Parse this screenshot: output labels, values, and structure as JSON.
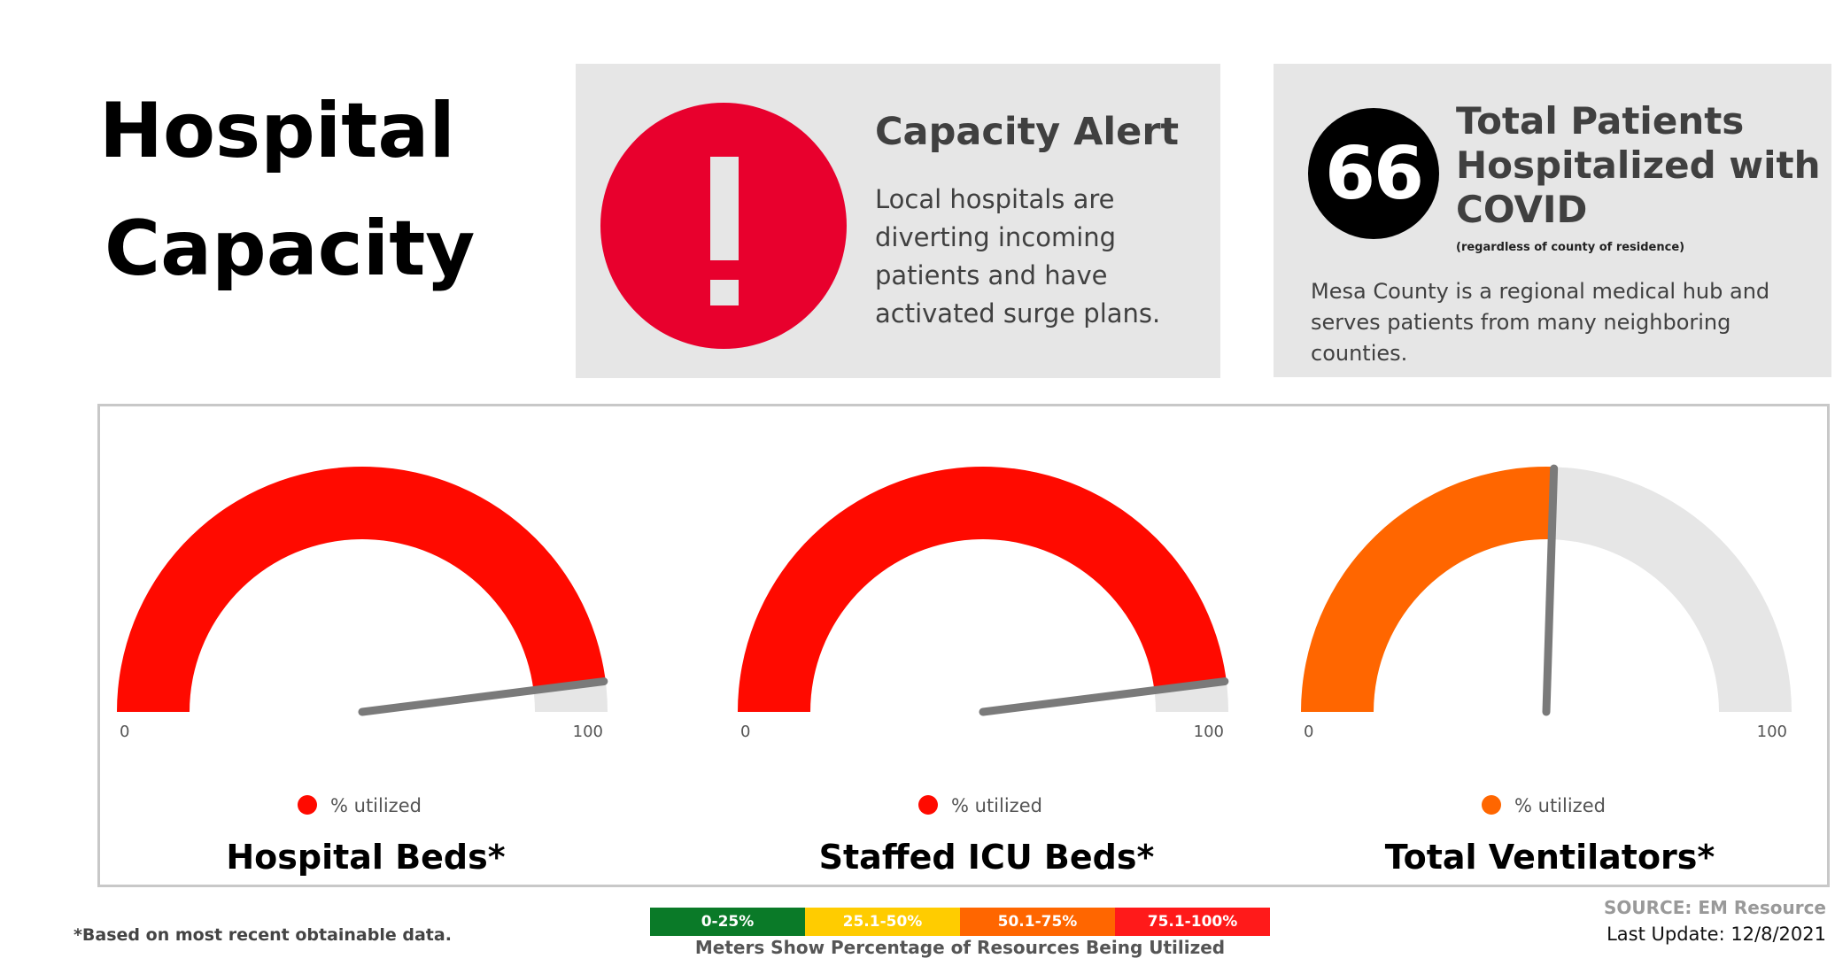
{
  "page_title": {
    "line1": "Hospital",
    "line2": "Capacity"
  },
  "alert_card": {
    "icon": "exclamation-icon",
    "icon_color": "#e8002d",
    "title": "Capacity Alert",
    "body": "Local hospitals are diverting incoming patients and have activated surge plans."
  },
  "patients_card": {
    "count": "66",
    "title": "Total Patients Hospitalized with COVID",
    "note": "(regardless of county of residence)",
    "body": "Mesa County is a regional medical hub and serves patients from many neighboring counties."
  },
  "chart_data": [
    {
      "type": "gauge",
      "title": "Hospital Beds*",
      "min": 0,
      "max": 100,
      "value": 96,
      "legend": "% utilized",
      "color": "#ff0a00",
      "min_label": "0",
      "max_label": "100"
    },
    {
      "type": "gauge",
      "title": "Staffed ICU Beds*",
      "min": 0,
      "max": 100,
      "value": 96,
      "legend": "% utilized",
      "color": "#ff0a00",
      "min_label": "0",
      "max_label": "100"
    },
    {
      "type": "gauge",
      "title": "Total Ventilators*",
      "min": 0,
      "max": 100,
      "value": 51,
      "legend": "% utilized",
      "color": "#ff6600",
      "min_label": "0",
      "max_label": "100"
    }
  ],
  "gauge_track_color": "#e6e6e6",
  "needle_color": "#7a7a7a",
  "footnote": "*Based on most recent obtainable data.",
  "scale": {
    "segments": [
      {
        "label": "0-25%",
        "color": "#0a7a28"
      },
      {
        "label": "25.1-50%",
        "color": "#ffcc00"
      },
      {
        "label": "50.1-75%",
        "color": "#ff6600"
      },
      {
        "label": "75.1-100%",
        "color": "#ff1a1a"
      }
    ],
    "caption": "Meters Show Percentage of Resources Being Utilized"
  },
  "source": "SOURCE: EM Resource",
  "last_update": "Last Update: 12/8/2021"
}
